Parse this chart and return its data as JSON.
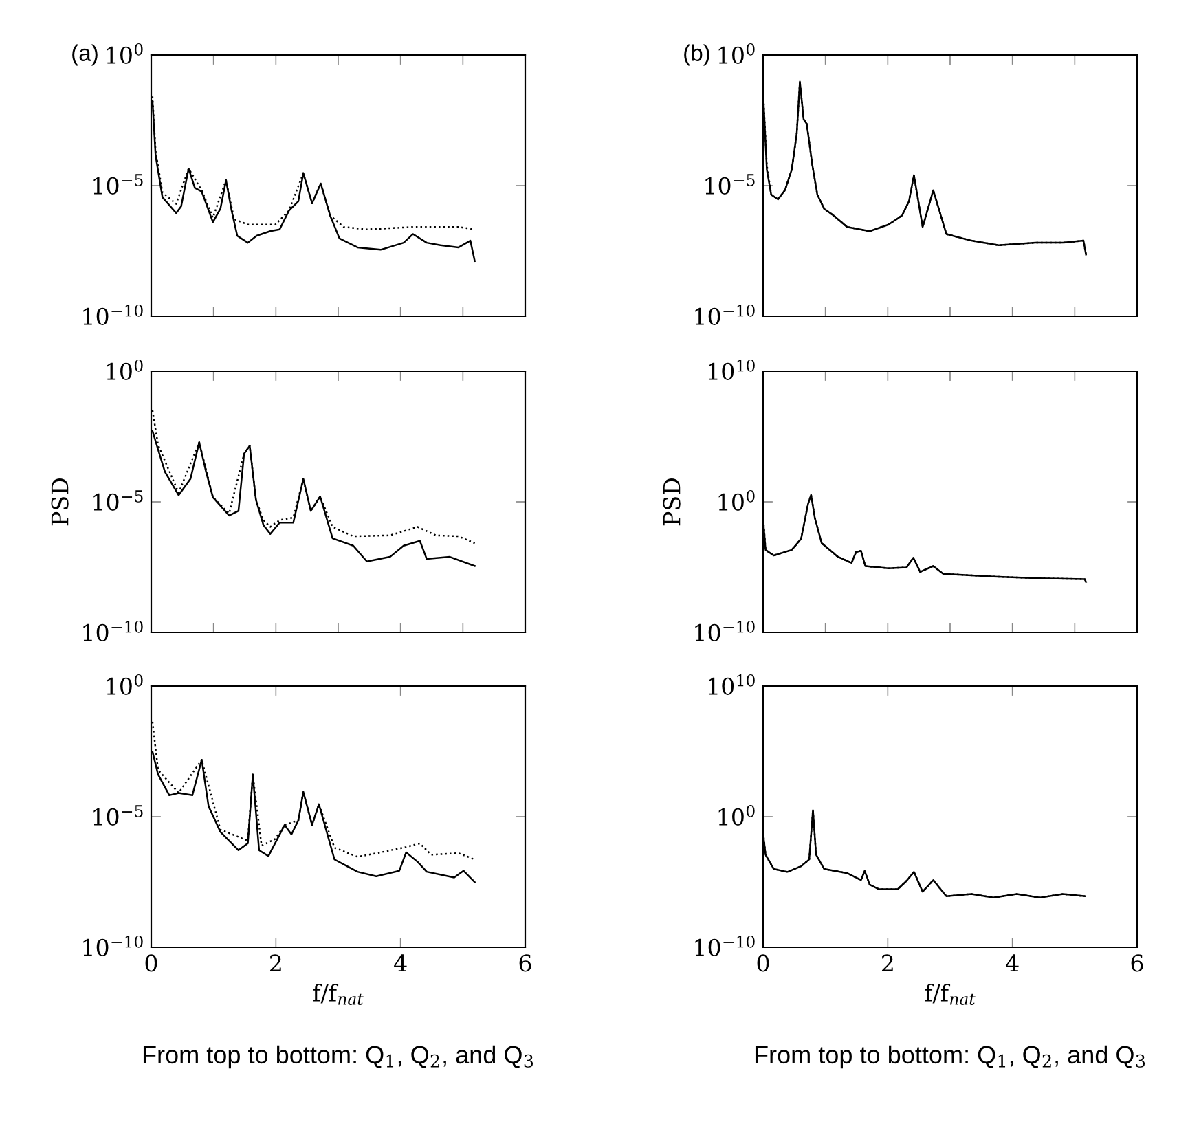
{
  "chart_data": [
    {
      "type": "line",
      "annotations": [
        "(a)"
      ],
      "log": "y",
      "xlim": [
        0,
        6
      ],
      "xticks": [
        0,
        1,
        2,
        3,
        4,
        5,
        6
      ],
      "ylim": [
        1e-10,
        1
      ],
      "yticks": [
        {
          "value": 1e-10,
          "label": "10$^{−10}$"
        },
        {
          "value": 1e-05,
          "label": "10$^{−5}$"
        },
        {
          "value": 1,
          "label": "10$^{0}$"
        }
      ],
      "tick_labels": "y",
      "grid": false,
      "series": [
        {
          "color": "#000000",
          "line_style": "dotted",
          "x": [
            0.02,
            0.07,
            0.18,
            0.4,
            0.6,
            0.81,
            0.99,
            1.2,
            1.33,
            1.55,
            1.99,
            2.21,
            2.44,
            2.58,
            2.72,
            2.87,
            3.09,
            3.46,
            4.2,
            4.93,
            5.19
          ],
          "values": [
            0.026,
            0.00021,
            5.5e-06,
            2e-06,
            4.5e-05,
            6.6e-06,
            5.9e-07,
            1.6e-05,
            5.2e-07,
            3.2e-07,
            3.2e-07,
            1.1e-06,
            3e-05,
            2.1e-06,
            1.2e-05,
            7.2e-07,
            2.6e-07,
            2.1e-07,
            2.6e-07,
            2.6e-07,
            2.1e-07
          ]
        },
        {
          "color": "#000000",
          "line_style": "solid",
          "x": [
            0.02,
            0.07,
            0.18,
            0.4,
            0.48,
            0.6,
            0.7,
            0.81,
            0.99,
            1.11,
            1.2,
            1.29,
            1.38,
            1.55,
            1.69,
            1.91,
            2.06,
            2.21,
            2.36,
            2.44,
            2.58,
            2.72,
            2.87,
            3.02,
            3.31,
            3.68,
            4.05,
            4.2,
            4.42,
            4.64,
            4.93,
            5.12,
            5.19
          ],
          "values": [
            0.018,
            0.00014,
            3.6e-06,
            8.9e-07,
            1.6e-06,
            4.5e-05,
            8.1e-06,
            5.9e-06,
            4e-07,
            1.3e-06,
            1.6e-05,
            1.1e-06,
            1.2e-07,
            6.5e-08,
            1.2e-07,
            1.8e-07,
            2.1e-07,
            1.1e-06,
            2.5e-06,
            3e-05,
            2.1e-06,
            1.2e-05,
            7.2e-07,
            9.5e-08,
            4.3e-08,
            3.5e-08,
            6.5e-08,
            1.4e-07,
            6.5e-08,
            5.2e-08,
            4.3e-08,
            7.8e-08,
            1.3e-08
          ]
        }
      ]
    },
    {
      "type": "line",
      "ylabel": "PSD",
      "log": "y",
      "xlim": [
        0,
        6
      ],
      "xticks": [
        0,
        1,
        2,
        3,
        4,
        5,
        6
      ],
      "ylim": [
        1e-10,
        1
      ],
      "yticks": [
        {
          "value": 1e-10,
          "label": "10$^{−10}$"
        },
        {
          "value": 1e-05,
          "label": "10$^{−5}$"
        },
        {
          "value": 1,
          "label": "10$^{0}$"
        }
      ],
      "tick_labels": "y",
      "grid": false,
      "series": [
        {
          "color": "#000000",
          "line_style": "dotted",
          "x": [
            0.02,
            0.11,
            0.44,
            0.77,
            0.99,
            1.25,
            1.49,
            1.58,
            1.68,
            1.8,
            1.91,
            2.06,
            2.28,
            2.44,
            2.56,
            2.71,
            2.91,
            3.24,
            3.83,
            4.27,
            4.57,
            4.93,
            5.19
          ],
          "values": [
            0.032,
            0.0015,
            2.2e-05,
            0.0019,
            1.5e-05,
            3.6e-06,
            0.00069,
            0.0014,
            1.2e-05,
            2e-06,
            1.1e-06,
            2e-06,
            2.5e-06,
            7.6e-05,
            4.5e-06,
            1.6e-05,
            1.1e-06,
            4.8e-07,
            5.2e-07,
            1.1e-06,
            5.2e-07,
            4.8e-07,
            2.6e-07
          ]
        },
        {
          "color": "#000000",
          "line_style": "solid",
          "x": [
            0.02,
            0.11,
            0.22,
            0.44,
            0.63,
            0.77,
            0.88,
            0.99,
            1.25,
            1.4,
            1.49,
            1.58,
            1.68,
            1.8,
            1.91,
            2.06,
            2.28,
            2.44,
            2.56,
            2.71,
            2.91,
            3.24,
            3.46,
            3.83,
            4.05,
            4.31,
            4.42,
            4.79,
            5.19
          ],
          "values": [
            0.0052,
            0.001,
            0.00014,
            1.8e-05,
            7.6e-05,
            0.0019,
            0.00014,
            1.5e-05,
            3e-06,
            4.5e-06,
            0.00069,
            0.0014,
            1.2e-05,
            1.3e-06,
            5.9e-07,
            1.6e-06,
            1.6e-06,
            7.6e-05,
            4.5e-06,
            1.6e-05,
            4e-07,
            2.1e-07,
            5.2e-08,
            7.8e-08,
            2.1e-07,
            3.2e-07,
            6.5e-08,
            7.8e-08,
            3.5e-08
          ]
        }
      ]
    },
    {
      "type": "line",
      "xlabel": "f/f$_{nat}$",
      "annotations": [
        "From top to bottom: Q$_{1}$, Q$_{2}$, and Q$_{3}$"
      ],
      "log": "y",
      "xlim": [
        0,
        6
      ],
      "xticks": [
        0,
        2,
        4,
        6
      ],
      "ylim": [
        1e-10,
        1
      ],
      "yticks": [
        {
          "value": 1e-10,
          "label": "10$^{−10}$"
        },
        {
          "value": 1e-05,
          "label": "10$^{−5}$"
        },
        {
          "value": 1,
          "label": "10$^{0}$"
        }
      ],
      "grid": false,
      "series": [
        {
          "color": "#000000",
          "line_style": "dotted",
          "x": [
            0.02,
            0.11,
            0.44,
            0.81,
            1.11,
            1.55,
            1.63,
            1.77,
            1.99,
            2.14,
            2.36,
            2.44,
            2.58,
            2.69,
            2.94,
            3.31,
            3.68,
            4.09,
            4.31,
            4.49,
            4.93,
            5.19
          ],
          "values": [
            0.043,
            0.00062,
            8.1e-05,
            0.0015,
            3.2e-06,
            1.2e-06,
            0.00041,
            7.8e-07,
            1.4e-06,
            4.8e-06,
            7.2e-06,
            8.9e-05,
            4.8e-06,
            3e-05,
            6.5e-07,
            2.9e-07,
            4.3e-07,
            6.9e-07,
            9.5e-07,
            3.5e-07,
            4e-07,
            2.3e-07
          ]
        },
        {
          "color": "#000000",
          "line_style": "solid",
          "x": [
            0.02,
            0.11,
            0.29,
            0.44,
            0.66,
            0.81,
            0.92,
            1.11,
            1.4,
            1.55,
            1.63,
            1.73,
            1.88,
            2.14,
            2.25,
            2.36,
            2.44,
            2.58,
            2.69,
            2.94,
            3.31,
            3.61,
            3.98,
            4.09,
            4.27,
            4.42,
            4.86,
            5.01,
            5.19
          ],
          "values": [
            0.0031,
            0.00041,
            6.6e-05,
            8.1e-05,
            6.6e-05,
            0.0015,
            2.5e-05,
            2.6e-06,
            5.2e-07,
            9.5e-07,
            0.00041,
            5.2e-07,
            3.1e-07,
            4.8e-06,
            2.1e-06,
            7.2e-06,
            8.9e-05,
            4.8e-06,
            3e-05,
            2.3e-07,
            7.8e-08,
            5.2e-08,
            8.5e-08,
            4.3e-07,
            1.9e-07,
            7.8e-08,
            4.7e-08,
            8.5e-08,
            3.1e-08
          ]
        }
      ]
    },
    {
      "type": "line",
      "annotations": [
        "(b)"
      ],
      "log": "y",
      "xlim": [
        0,
        6
      ],
      "xticks": [
        0,
        1,
        2,
        3,
        4,
        5,
        6
      ],
      "ylim": [
        1e-10,
        1
      ],
      "yticks": [
        {
          "value": 1e-10,
          "label": "10$^{−10}$"
        },
        {
          "value": 1e-05,
          "label": "10$^{−5}$"
        },
        {
          "value": 1,
          "label": "10$^{0}$"
        }
      ],
      "tick_labels": "y",
      "grid": false,
      "series": [
        {
          "color": "#000000",
          "line_style": "dotted",
          "x": [
            0.01,
            0.06,
            0.13,
            0.24,
            0.35,
            0.46,
            0.54,
            0.59,
            0.65,
            0.7,
            0.79,
            0.87,
            0.98,
            1.13,
            1.35,
            1.71,
            2.01,
            2.23,
            2.34,
            2.42,
            2.56,
            2.73,
            2.94,
            3.34,
            3.78,
            4.37,
            4.81,
            5.14,
            5.18
          ],
          "values": [
            0.014,
            6e-05,
            4.5e-06,
            3e-06,
            6.6e-06,
            4.1e-05,
            0.001,
            0.095,
            0.0035,
            0.0023,
            6.2e-05,
            4.5e-06,
            1.3e-06,
            7.2e-07,
            2.6e-07,
            1.8e-07,
            3.2e-07,
            7.2e-07,
            2.5e-06,
            2.5e-05,
            2.6e-07,
            6.6e-06,
            1.4e-07,
            7.8e-08,
            5.2e-08,
            6.5e-08,
            6.5e-08,
            7.8e-08,
            2.3e-08
          ]
        },
        {
          "color": "#000000",
          "line_style": "solid",
          "x": [
            0.01,
            0.06,
            0.13,
            0.24,
            0.35,
            0.46,
            0.54,
            0.59,
            0.65,
            0.7,
            0.79,
            0.87,
            0.98,
            1.13,
            1.35,
            1.71,
            2.01,
            2.23,
            2.34,
            2.42,
            2.56,
            2.73,
            2.94,
            3.34,
            3.78,
            4.37,
            4.81,
            5.14,
            5.18
          ],
          "values": [
            0.012,
            4.1e-05,
            4.5e-06,
            3e-06,
            6.6e-06,
            4.1e-05,
            0.001,
            0.095,
            0.0035,
            0.0023,
            6.2e-05,
            4.5e-06,
            1.3e-06,
            7.2e-07,
            2.6e-07,
            1.8e-07,
            3.2e-07,
            7.2e-07,
            2.5e-06,
            2.5e-05,
            2.6e-07,
            6.6e-06,
            1.4e-07,
            7.8e-08,
            5.2e-08,
            6.5e-08,
            6.5e-08,
            7.8e-08,
            2.3e-08
          ]
        }
      ]
    },
    {
      "type": "line",
      "ylabel": "PSD",
      "log": "y",
      "xlim": [
        0,
        6
      ],
      "xticks": [
        0,
        1,
        2,
        3,
        4,
        5,
        6
      ],
      "ylim": [
        1e-10,
        10000000000.0
      ],
      "yticks": [
        {
          "value": 1e-10,
          "label": "10$^{−10}$"
        },
        {
          "value": 1,
          "label": "10$^{0}$"
        },
        {
          "value": 10000000000.0,
          "label": "10$^{10}$"
        }
      ],
      "tick_labels": "y",
      "grid": false,
      "series": [
        {
          "color": "#000000",
          "line_style": "dotted",
          "x": [
            0.01,
            0.04,
            0.17,
            0.46,
            0.61,
            0.72,
            0.77,
            0.83,
            0.94,
            1.2,
            1.42,
            1.49,
            1.57,
            1.64,
            2.01,
            2.3,
            2.41,
            2.52,
            2.73,
            2.89,
            3.7,
            4.44,
            5.16,
            5.18
          ],
          "values": [
            0.018,
            0.00021,
            7.8e-05,
            0.00021,
            0.0015,
            0.66,
            3.4,
            0.059,
            0.00069,
            6.2e-05,
            2.1e-05,
            0.00014,
            0.00018,
            1.2e-05,
            8.1e-06,
            9.5e-06,
            5.2e-05,
            4.3e-06,
            1.2e-05,
            3.1e-06,
            1.9e-06,
            1.4e-06,
            1.2e-06,
            7.2e-07
          ]
        },
        {
          "color": "#000000",
          "line_style": "solid",
          "x": [
            0.01,
            0.04,
            0.17,
            0.46,
            0.61,
            0.72,
            0.77,
            0.83,
            0.94,
            1.2,
            1.42,
            1.49,
            1.57,
            1.64,
            2.01,
            2.3,
            2.41,
            2.52,
            2.73,
            2.89,
            3.7,
            4.44,
            5.16,
            5.18
          ],
          "values": [
            0.012,
            0.00021,
            7.8e-05,
            0.00021,
            0.0015,
            0.66,
            3.4,
            0.059,
            0.00069,
            6.2e-05,
            2.1e-05,
            0.00014,
            0.00018,
            1.2e-05,
            8.1e-06,
            9.5e-06,
            5.2e-05,
            4.3e-06,
            1.2e-05,
            3.1e-06,
            1.9e-06,
            1.4e-06,
            1.2e-06,
            7.2e-07
          ]
        }
      ]
    },
    {
      "type": "line",
      "xlabel": "f/f$_{nat}$",
      "annotations": [
        "From top to bottom: Q$_{1}$, Q$_{2}$, and Q$_{3}$"
      ],
      "log": "y",
      "xlim": [
        0,
        6
      ],
      "xticks": [
        0,
        2,
        4,
        6
      ],
      "ylim": [
        1e-10,
        10000000000.0
      ],
      "yticks": [
        {
          "value": 1e-10,
          "label": "10$^{−10}$"
        },
        {
          "value": 1,
          "label": "10$^{0}$"
        },
        {
          "value": 10000000000.0,
          "label": "10$^{10}$"
        }
      ],
      "grid": false,
      "series": [
        {
          "color": "#000000",
          "line_style": "dotted",
          "x": [
            0.01,
            0.04,
            0.17,
            0.39,
            0.61,
            0.74,
            0.8,
            0.85,
            0.98,
            1.35,
            1.57,
            1.63,
            1.71,
            1.86,
            2.16,
            2.3,
            2.42,
            2.56,
            2.73,
            2.94,
            3.34,
            3.7,
            4.07,
            4.44,
            4.81,
            5.16
          ],
          "values": [
            0.025,
            0.0012,
            0.0001,
            5.9e-05,
            0.00016,
            0.00054,
            3.1,
            0.0012,
            0.0001,
            4.7e-05,
            1.4e-05,
            7.1e-05,
            6.2e-06,
            2.8e-06,
            2.8e-06,
            1.2e-05,
            5.9e-05,
            1.8e-06,
            1.4e-05,
            8.1e-07,
            1.2e-06,
            6.3e-07,
            1.2e-06,
            6.3e-07,
            1.2e-06,
            8.1e-07
          ]
        },
        {
          "color": "#000000",
          "line_style": "solid",
          "x": [
            0.01,
            0.04,
            0.17,
            0.39,
            0.61,
            0.74,
            0.8,
            0.85,
            0.98,
            1.35,
            1.57,
            1.63,
            1.71,
            1.86,
            2.16,
            2.3,
            2.42,
            2.56,
            2.73,
            2.94,
            3.34,
            3.7,
            4.07,
            4.44,
            4.81,
            5.16
          ],
          "values": [
            0.02,
            0.0012,
            0.0001,
            5.9e-05,
            0.00016,
            0.00054,
            3.1,
            0.0012,
            0.0001,
            4.7e-05,
            1.4e-05,
            7.1e-05,
            6.2e-06,
            2.8e-06,
            2.8e-06,
            1.2e-05,
            5.9e-05,
            1.8e-06,
            1.4e-05,
            8.1e-07,
            1.2e-06,
            6.3e-07,
            1.2e-06,
            6.3e-07,
            1.2e-06,
            8.1e-07
          ]
        }
      ]
    }
  ]
}
